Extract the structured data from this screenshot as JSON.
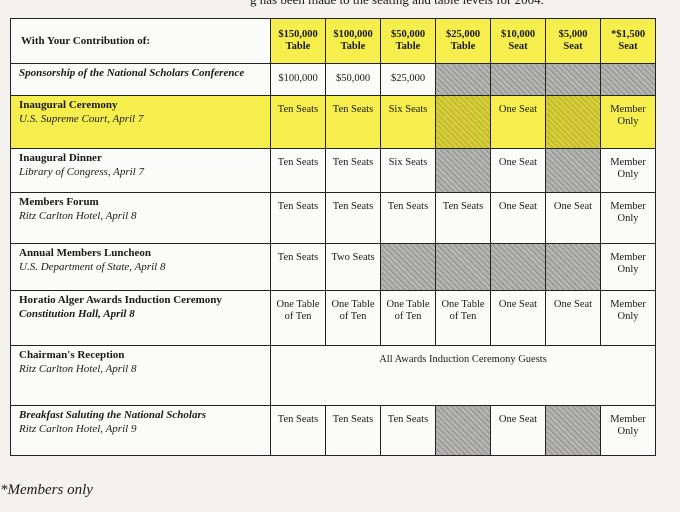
{
  "top_text": "g has been made to the seating and table levels for 2004.",
  "table": {
    "header_label": "With Your Contribution of:",
    "columns": [
      [
        "$150,000",
        "Table"
      ],
      [
        "$100,000",
        "Table"
      ],
      [
        "$50,000",
        "Table"
      ],
      [
        "$25,000",
        "Table"
      ],
      [
        "$10,000",
        "Seat"
      ],
      [
        "$5,000",
        "Seat"
      ],
      [
        "*$1,500",
        "Seat"
      ]
    ],
    "rows": [
      {
        "title": "Sponsorship of the National Scholars Conference",
        "cells": [
          "$100,000",
          "$50,000",
          "$25,000",
          null,
          null,
          null,
          null
        ]
      },
      {
        "title": "Inaugural Ceremony",
        "subtitle": "U.S. Supreme Court, April 7",
        "cells": [
          "Ten Seats",
          "Ten Seats",
          "Six Seats",
          null,
          "One Seat",
          null,
          "Member Only"
        ]
      },
      {
        "title": "Inaugural Dinner",
        "subtitle": "Library of Congress, April 7",
        "cells": [
          "Ten Seats",
          "Ten Seats",
          "Six Seats",
          null,
          "One Seat",
          null,
          "Member Only"
        ]
      },
      {
        "title": "Members Forum",
        "subtitle": "Ritz Carlton Hotel, April 8",
        "cells": [
          "Ten Seats",
          "Ten Seats",
          "Ten Seats",
          "Ten Seats",
          "One Seat",
          "One Seat",
          "Member Only"
        ]
      },
      {
        "title": "Annual Members Luncheon",
        "subtitle": "U.S. Department of State, April 8",
        "cells": [
          "Ten Seats",
          "Two Seats",
          null,
          null,
          null,
          null,
          "Member Only"
        ]
      },
      {
        "title": "Horatio Alger Awards Induction Ceremony",
        "subtitle": "Constitution Hall, April 8",
        "cells": [
          "One Table of Ten",
          "One Table of Ten",
          "One Table of Ten",
          "One Table of Ten",
          "One Seat",
          "One Seat",
          "Member Only"
        ]
      },
      {
        "title": "Chairman's Reception",
        "subtitle": "Ritz Carlton Hotel, April 8",
        "span": "All Awards Induction Ceremony Guests"
      },
      {
        "title": "Breakfast Saluting the National Scholars",
        "subtitle": "Ritz Carlton Hotel, April 9",
        "cells": [
          "Ten Seats",
          "Ten Seats",
          "Ten Seats",
          null,
          "One Seat",
          null,
          "Member Only"
        ]
      }
    ]
  },
  "footnote": "*Members only"
}
